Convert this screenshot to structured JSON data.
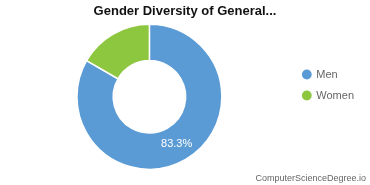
{
  "chart_data": {
    "type": "donut",
    "title": "Gender Diversity of General...",
    "categories": [
      "Men",
      "Women"
    ],
    "values": [
      83.3,
      16.7
    ],
    "value_labels": [
      "83.3%",
      null
    ],
    "colors": [
      "#5b9bd5",
      "#8dc63f"
    ],
    "legend": "right",
    "annotations": [
      "ComputerScienceDegree.io"
    ]
  }
}
